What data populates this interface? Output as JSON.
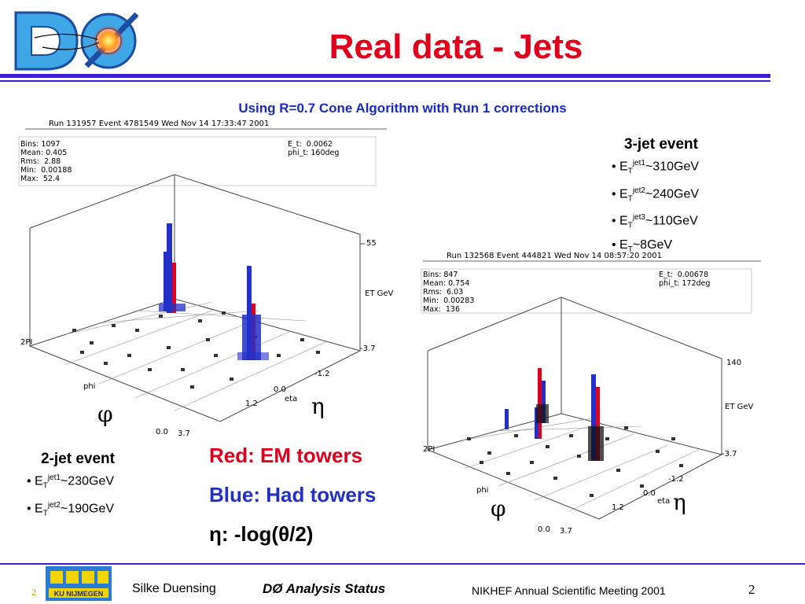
{
  "slide": {
    "title": "Real data - Jets",
    "subtitle": "Using R=0.7 Cone Algorithm with Run 1 corrections",
    "logo_text": "DØ"
  },
  "plot_left": {
    "run_header": "Run 131957 Event 4781549 Wed Nov 14 17:33:47 2001",
    "stats": "Bins: 1097\nMean: 0.405\nRms:  2.88\nMin:  0.00188\nMax:  52.4",
    "et_box": "E_t:  0.0062\nphi_t: 160deg",
    "z_max": "55",
    "z_label": "ET GeV",
    "phi_top": "2PI",
    "phi_label": "phi",
    "phi_zero": "0.0",
    "eta_min": "-3.7",
    "eta_a": "-1.2",
    "eta_b": "0.0",
    "eta_c": "1.2",
    "eta_max": "3.7",
    "eta_label": "eta"
  },
  "plot_right": {
    "run_header": "Run 132568 Event 444821 Wed Nov 14 08:57:20 2001",
    "stats": "Bins: 847\nMean: 0.754\nRms:  6.03\nMin:  0.00283\nMax:  136",
    "et_box": "E_t:  0.00678\nphi_t: 172deg",
    "z_max": "140",
    "z_label": "ET GeV",
    "phi_top": "2PI",
    "phi_label": "phi",
    "phi_zero": "0.0",
    "eta_min": "-3.7",
    "eta_a": "-1.2",
    "eta_b": "0.0",
    "eta_c": "1.2",
    "eta_max": "3.7",
    "eta_label": "eta"
  },
  "greek": {
    "phi": "φ",
    "eta": "η"
  },
  "three_jet": {
    "heading": "3-jet event",
    "items": [
      {
        "sup": "jet1",
        "val": "~310GeV"
      },
      {
        "sup": "jet2",
        "val": "~240GeV"
      },
      {
        "sup": "jet3",
        "val": "~110GeV"
      },
      {
        "sup": "",
        "val": "~8GeV"
      }
    ]
  },
  "two_jet": {
    "heading": "2-jet event",
    "items": [
      {
        "sup": "jet1",
        "val": "~230GeV"
      },
      {
        "sup": "jet2",
        "val": "~190GeV"
      }
    ]
  },
  "legend": {
    "red": "Red: EM towers",
    "blue": "Blue: Had towers",
    "eta_def": "η: -log(θ/2)"
  },
  "footer": {
    "page_small": "2",
    "author": "Silke Duensing",
    "talk": "DØ Analysis Status",
    "meeting": "NIKHEF Annual Scientific Meeting 2001",
    "page": "2",
    "nikhef_logo_text": "KU NIJMEGEN"
  },
  "colors": {
    "title": "#e0001b",
    "rule": "#3b1fd8",
    "em": "#e0001b",
    "had": "#2330c8"
  }
}
